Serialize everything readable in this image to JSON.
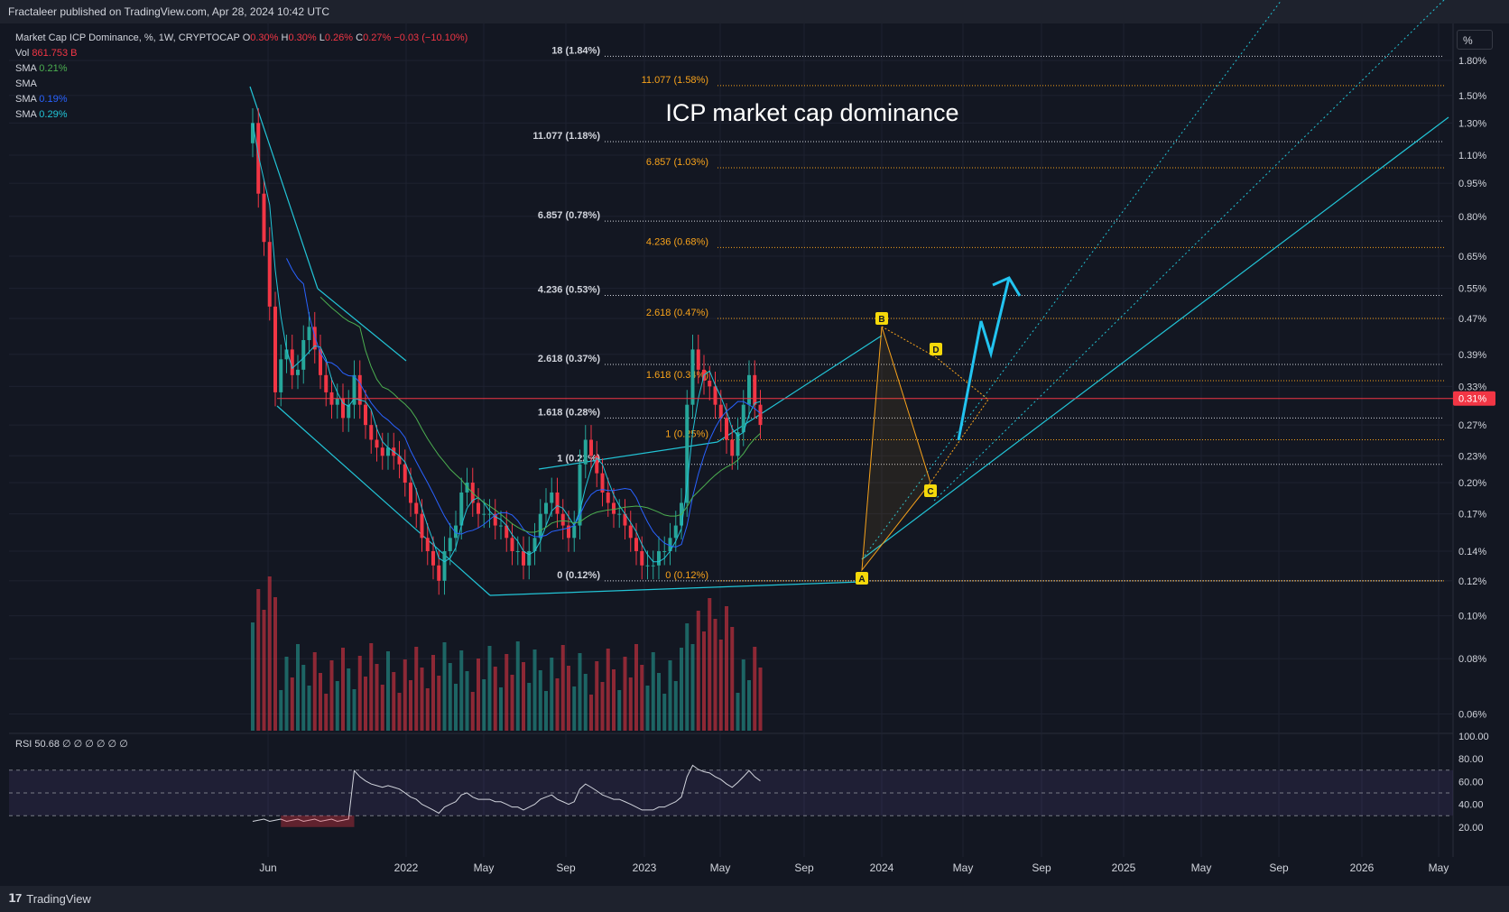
{
  "header": {
    "published": "Fractaleer published on TradingView.com, Apr 28, 2024 10:42 UTC"
  },
  "legend": {
    "symbol": "Market Cap ICP Dominance, %, 1W, CRYPTOCAP",
    "o_label": "O",
    "o_value": "0.30%",
    "h_label": "H",
    "h_value": "0.30%",
    "l_label": "L",
    "l_value": "0.26%",
    "c_label": "C",
    "c_value": "0.27%",
    "change": "−0.03 (−10.10%)",
    "vol_label": "Vol",
    "vol_value": "861.753 B",
    "sma1_label": "SMA",
    "sma1_value": "0.21%",
    "sma2_label": "SMA",
    "sma3_label": "SMA",
    "sma3_value": "0.19%",
    "sma4_label": "SMA",
    "sma4_value": "0.29%"
  },
  "toolbar": {
    "percent_button": "%"
  },
  "annotation": {
    "title": "ICP market cap dominance"
  },
  "price_label": "0.31%",
  "rsi": {
    "label": "RSI",
    "value": "50.68",
    "placeholders": "∅ ∅ ∅ ∅ ∅ ∅",
    "levels": [
      "100.00",
      "80.00",
      "60.00",
      "40.00",
      "20.00"
    ]
  },
  "footer": {
    "brand": "TradingView"
  },
  "colors": {
    "background": "#131722",
    "up": "#26a69a",
    "down": "#f23645",
    "trendline": "#22c4d6",
    "fib_white": "#d1d4dc",
    "fib_orange": "#f7a21b",
    "sma_green": "#4caf50",
    "sma_blue": "#2962ff",
    "price_line": "#f23645"
  },
  "chart_data": {
    "type": "candlestick",
    "title": "ICP market cap dominance",
    "y_scale": "log",
    "yaxis_ticks": [
      "1.80%",
      "1.50%",
      "1.30%",
      "1.10%",
      "0.95%",
      "0.80%",
      "0.65%",
      "0.55%",
      "0.47%",
      "0.39%",
      "0.33%",
      "0.27%",
      "0.23%",
      "0.20%",
      "0.17%",
      "0.14%",
      "0.12%",
      "0.10%",
      "0.08%",
      "0.06%"
    ],
    "xaxis_ticks": [
      "Jun",
      "2022",
      "May",
      "Sep",
      "2023",
      "May",
      "Sep",
      "2024",
      "May",
      "Sep",
      "2025",
      "May",
      "Sep",
      "2026",
      "May"
    ],
    "last_price": 0.31,
    "fib_white": [
      {
        "label": "18 (1.84%)",
        "value": 1.84
      },
      {
        "label": "11.077 (1.18%)",
        "value": 1.18
      },
      {
        "label": "6.857 (0.78%)",
        "value": 0.78
      },
      {
        "label": "4.236 (0.53%)",
        "value": 0.53
      },
      {
        "label": "2.618 (0.37%)",
        "value": 0.37
      },
      {
        "label": "1.618 (0.28%)",
        "value": 0.28
      },
      {
        "label": "1 (0.22%)",
        "value": 0.22
      },
      {
        "label": "0 (0.12%)",
        "value": 0.12
      }
    ],
    "fib_orange": [
      {
        "label": "11.077 (1.58%)",
        "value": 1.58
      },
      {
        "label": "6.857 (1.03%)",
        "value": 1.03
      },
      {
        "label": "4.236 (0.68%)",
        "value": 0.68
      },
      {
        "label": "2.618 (0.47%)",
        "value": 0.47
      },
      {
        "label": "1.618 (0.34%)",
        "value": 0.34
      },
      {
        "label": "1 (0.25%)",
        "value": 0.25
      },
      {
        "label": "0 (0.12%)",
        "value": 0.12
      }
    ],
    "pattern_points": [
      {
        "label": "A",
        "value": 0.14
      },
      {
        "label": "B",
        "value": 0.44
      },
      {
        "label": "C",
        "value": 0.22
      },
      {
        "label": "D",
        "value": 0.38
      }
    ],
    "series": [
      {
        "name": "Market Cap ICP Dominance",
        "start": "2021-05",
        "values": [
          1.3,
          0.9,
          0.7,
          0.5,
          0.32,
          0.38,
          0.4,
          0.35,
          0.36,
          0.42,
          0.45,
          0.4,
          0.35,
          0.32,
          0.3,
          0.31,
          0.28,
          0.3,
          0.35,
          0.3,
          0.27,
          0.25,
          0.24,
          0.23,
          0.24,
          0.23,
          0.22,
          0.2,
          0.18,
          0.17,
          0.15,
          0.14,
          0.13,
          0.12,
          0.14,
          0.15,
          0.16,
          0.19,
          0.2,
          0.18,
          0.17,
          0.17,
          0.17,
          0.16,
          0.16,
          0.15,
          0.14,
          0.14,
          0.13,
          0.14,
          0.15,
          0.17,
          0.18,
          0.19,
          0.17,
          0.16,
          0.15,
          0.16,
          0.22,
          0.25,
          0.23,
          0.21,
          0.19,
          0.18,
          0.17,
          0.17,
          0.16,
          0.15,
          0.14,
          0.13,
          0.13,
          0.13,
          0.14,
          0.14,
          0.15,
          0.16,
          0.18,
          0.3,
          0.4,
          0.36,
          0.34,
          0.33,
          0.3,
          0.28,
          0.25,
          0.23,
          0.26,
          0.3,
          0.35,
          0.3,
          0.27
        ]
      },
      {
        "name": "Vol"
      },
      {
        "name": "RSI"
      }
    ]
  }
}
